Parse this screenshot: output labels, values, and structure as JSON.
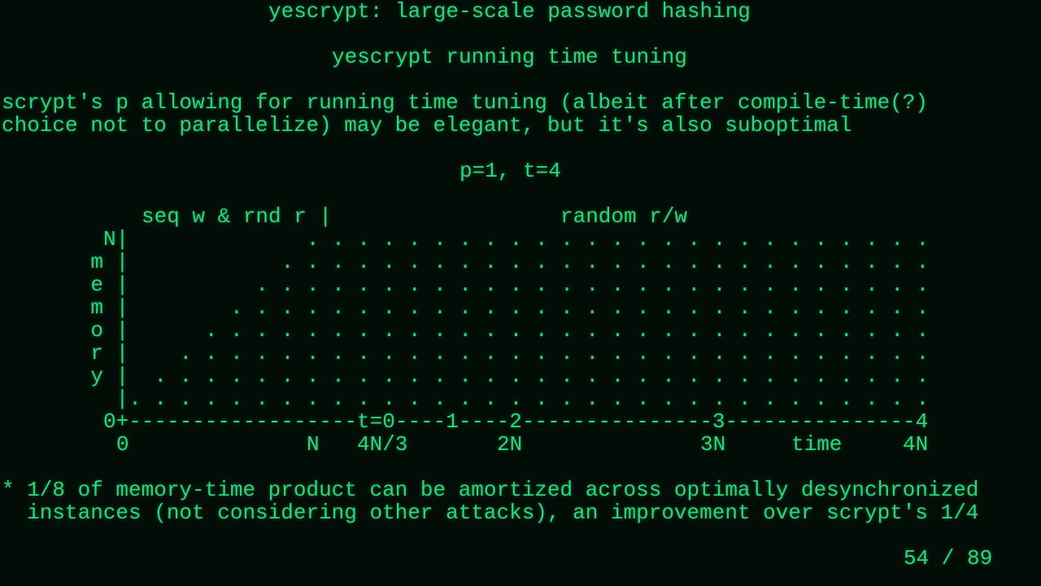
{
  "slide": {
    "title": "yescrypt: large-scale password hashing",
    "subtitle": "yescrypt running time tuning",
    "body_lines": [
      "scrypt's p allowing for running time tuning (albeit after compile-time(?)",
      "choice not to parallelize) may be elegant, but it's also suboptimal"
    ],
    "params": "p=1, t=4",
    "footnote_lines": [
      "* 1/8 of memory-time product can be amortized across optimally desynchronized",
      "  instances (not considering other attacks), an improvement over scrypt's 1/4"
    ],
    "page_indicator": "54 / 89"
  },
  "chart_data": {
    "type": "ascii-diagram",
    "header_left": "seq w & rnd r |",
    "header_right": "random r/w",
    "y_label": "memory",
    "y_top": "N",
    "axis_line": "0+------------------t=0----1----2---------------3---------------4",
    "x_labels": [
      "0",
      "N",
      "4N/3",
      "2N",
      "3N",
      "time",
      "4N"
    ],
    "description_shape": "triangle ramp of sequential writes from 0 to N, then full random r/w region to 4N",
    "colors": {
      "text": "#2ad67c",
      "background": "#030d07"
    }
  }
}
